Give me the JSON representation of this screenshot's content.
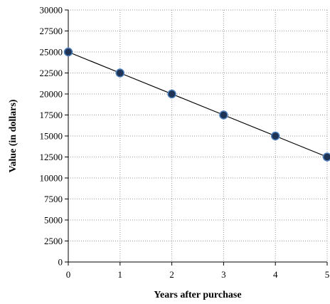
{
  "chart_data": {
    "type": "scatter",
    "xlabel": "Years after purchase",
    "ylabel": "Value (in dollars)",
    "xlim": [
      0,
      5
    ],
    "ylim": [
      0,
      30000
    ],
    "x_ticks": [
      0,
      1,
      2,
      3,
      4,
      5
    ],
    "y_ticks": [
      0,
      2500,
      5000,
      7500,
      10000,
      12500,
      15000,
      17500,
      20000,
      22500,
      25000,
      27500,
      30000
    ],
    "grid": true,
    "legend": "none",
    "series": [
      {
        "x": [
          0,
          1,
          2,
          3,
          4,
          5
        ],
        "y": [
          25000,
          22500,
          20000,
          17500,
          15000,
          12500
        ],
        "style": "line with markers",
        "marker_fill": "#1f3354",
        "marker_edge": "#4f81bd",
        "line_color": "#000000"
      }
    ]
  }
}
